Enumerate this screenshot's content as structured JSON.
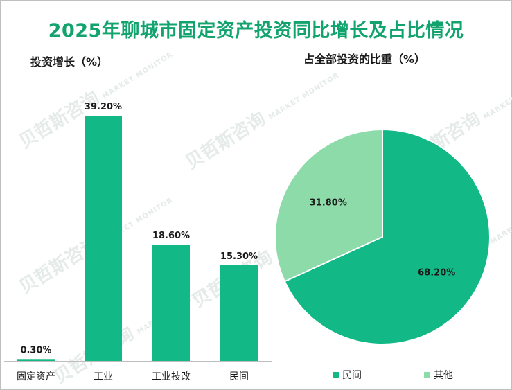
{
  "title": "2025年聊城市固定资产投资同比增长及占比情况",
  "watermark": {
    "cn": "贝哲斯咨询",
    "en": "MARKET MONITOR"
  },
  "colors": {
    "title": "#12a36f",
    "primary": "#12b886",
    "secondary": "#8cdba8"
  },
  "chart_data": [
    {
      "type": "bar",
      "title": "投资增长（%）",
      "categories": [
        "固定资产",
        "工业",
        "工业技改",
        "民间"
      ],
      "values": [
        0.3,
        39.2,
        18.6,
        15.3
      ],
      "labels": [
        "0.30%",
        "39.20%",
        "18.60%",
        "15.30%"
      ],
      "ylim": [
        0,
        39.2
      ],
      "grid": false
    },
    {
      "type": "pie",
      "title": "占全部投资的比重（%）",
      "categories": [
        "民间",
        "其他"
      ],
      "values": [
        68.2,
        31.8
      ],
      "labels": [
        "68.20%",
        "31.80%"
      ],
      "legend": "bottom"
    }
  ]
}
